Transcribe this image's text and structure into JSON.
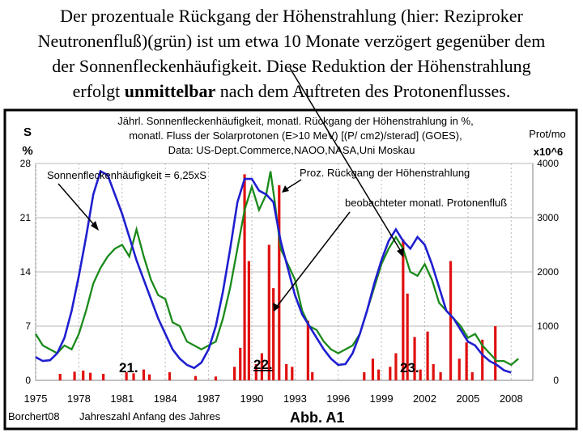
{
  "caption": {
    "line1": "Der prozentuale Rückgang der Höhenstrahlung (hier: Reziproker",
    "line2": "Neutronenfluß)(grün) ist um etwa 10 Monate verzögert gegenüber dem",
    "line3": "der Sonnenfleckenhäufigkeit. Diese Reduktion der Höhenstrahlung",
    "line4_pre": "erfolgt ",
    "line4_bold": "unmittelbar",
    "line4_post": " nach dem Auftreten des Protonenflusses."
  },
  "chart_data": {
    "type": "line",
    "title_lines": [
      "Jährl. Sonnenfleckenhäufigkeit, monatl. Rückgang der Höhenstrahlung in %,",
      "monatl. Fluss der Solarprotonen (E>10 MeV) [(P/ cm2)/sterad] (GOES),",
      "Data: US-Dept.Commerce,NAOO,NASA,Uni Moskau"
    ],
    "left_axis_label_1": "S",
    "left_axis_label_2": "%",
    "right_axis_label_1": "Prot/mo",
    "right_axis_label_2": "x10^6",
    "xlabel": "Jahreszahl Anfang des Jahres",
    "source_label": "Borchert08",
    "figure_label": "Abb. A1",
    "xlim": [
      1975,
      2009.5
    ],
    "ylim_left": [
      0,
      28
    ],
    "ylim_right": [
      0,
      4000
    ],
    "x_ticks": [
      1975,
      1978,
      1981,
      1984,
      1987,
      1990,
      1993,
      1996,
      1999,
      2002,
      2005,
      2008
    ],
    "y_ticks_left": [
      0,
      7,
      14,
      21,
      28
    ],
    "y_ticks_right": [
      0,
      1000,
      2000,
      3000,
      4000
    ],
    "annotations": {
      "sunspot": "Sonnenfleckenhäufigkeit = 6,25xS",
      "cosmic": "Proz. Rückgang der Höhenstrahlung",
      "protons": "beobachteter monatl. Protonenfluß",
      "cycle21": "21.",
      "cycle22": "22.",
      "cycle23": "23."
    },
    "grid": true,
    "colors": {
      "sunspot": "#1f1fd0",
      "cosmic": "#1a8a1a",
      "protons": "#e01010",
      "frame": "#000000",
      "grid": "#b8b8b8"
    },
    "series": [
      {
        "name": "Sonnenfleckenhäufigkeit = 6,25xS",
        "axis": "left",
        "x": [
          1975,
          1975.5,
          1976,
          1976.5,
          1977,
          1977.5,
          1978,
          1978.5,
          1979,
          1979.5,
          1980,
          1980.5,
          1981,
          1981.5,
          1982,
          1982.5,
          1983,
          1983.5,
          1984,
          1984.5,
          1985,
          1985.5,
          1986,
          1986.5,
          1987,
          1987.5,
          1988,
          1988.5,
          1989,
          1989.5,
          1990,
          1990.5,
          1991,
          1991.5,
          1992,
          1992.5,
          1993,
          1993.5,
          1994,
          1994.5,
          1995,
          1995.5,
          1996,
          1996.5,
          1997,
          1997.5,
          1998,
          1998.5,
          1999,
          1999.5,
          2000,
          2000.5,
          2001,
          2001.5,
          2002,
          2002.5,
          2003,
          2003.5,
          2004,
          2004.5,
          2005,
          2005.5,
          2006,
          2006.5,
          2007,
          2007.5,
          2008
        ],
        "values": [
          3,
          2.5,
          2.6,
          3.5,
          5.5,
          9,
          13.5,
          18.5,
          24,
          27,
          26.5,
          24,
          21.5,
          18.5,
          15.5,
          13,
          10.5,
          8,
          6,
          4,
          2.8,
          2,
          1.6,
          2.3,
          4,
          7,
          11.5,
          17,
          23,
          26,
          26,
          24.5,
          24,
          23,
          18,
          14.5,
          11,
          8.5,
          7,
          5.5,
          4,
          2.8,
          2,
          2.1,
          3.5,
          6,
          9,
          12.5,
          15.5,
          18,
          19.5,
          18,
          17,
          18.5,
          17.5,
          15,
          12,
          9,
          8,
          6.5,
          5,
          4.5,
          3.3,
          2.5,
          2,
          1.3,
          1
        ]
      },
      {
        "name": "Proz. Rückgang der Höhenstrahlung",
        "axis": "left",
        "x": [
          1975,
          1975.5,
          1976,
          1976.5,
          1977,
          1977.5,
          1978,
          1978.5,
          1979,
          1979.5,
          1980,
          1980.5,
          1981,
          1981.5,
          1982,
          1982.5,
          1983,
          1983.5,
          1984,
          1984.5,
          1985,
          1985.5,
          1986,
          1986.5,
          1987,
          1987.5,
          1988,
          1988.5,
          1989,
          1989.5,
          1990,
          1990.5,
          1991,
          1991.3,
          1991.6,
          1992,
          1992.5,
          1993,
          1993.5,
          1994,
          1994.5,
          1995,
          1995.5,
          1996,
          1996.5,
          1997,
          1997.5,
          1998,
          1998.5,
          1999,
          1999.5,
          2000,
          2000.5,
          2001,
          2001.5,
          2002,
          2002.5,
          2003,
          2003.5,
          2004,
          2004.5,
          2005,
          2005.5,
          2006,
          2006.5,
          2007,
          2007.5,
          2008,
          2008.5
        ],
        "values": [
          6,
          4.5,
          4,
          3.5,
          4.5,
          4,
          6,
          9,
          12.5,
          14.5,
          16,
          17,
          17.5,
          16,
          19.5,
          16,
          13,
          11,
          10.5,
          7.5,
          7,
          5,
          4.5,
          4,
          4.5,
          5,
          8,
          12,
          17,
          22,
          25,
          22,
          24,
          27,
          23,
          17,
          15,
          13,
          9,
          7,
          6.5,
          5,
          4,
          3.5,
          4,
          4.5,
          6,
          9,
          12,
          15,
          17,
          18.5,
          17,
          14,
          13.5,
          15,
          13,
          10,
          9,
          8,
          7,
          5.5,
          6,
          4.5,
          3.5,
          2.5,
          2.5,
          2,
          2.8
        ]
      },
      {
        "name": "beobachteter monatl. Protonenfluß",
        "axis": "right",
        "x": [
          1976.7,
          1977.7,
          1978.3,
          1978.8,
          1979.7,
          1981.3,
          1981.8,
          1982.5,
          1982.9,
          1984.3,
          1986.1,
          1987.5,
          1988.8,
          1989.2,
          1989.5,
          1989.8,
          1990.3,
          1990.7,
          1991.2,
          1991.5,
          1991.9,
          1992.4,
          1992.8,
          1993.9,
          1994.2,
          1997.8,
          1998.4,
          1998.8,
          1999.6,
          2000.0,
          2000.5,
          2000.8,
          2001.3,
          2001.7,
          2002.2,
          2002.6,
          2003.1,
          2003.8,
          2004.4,
          2004.9,
          2005.3,
          2006.0,
          2006.9
        ],
        "values": [
          120,
          160,
          180,
          140,
          120,
          150,
          130,
          200,
          110,
          150,
          80,
          70,
          250,
          600,
          3800,
          2200,
          300,
          500,
          2500,
          1700,
          3600,
          300,
          250,
          1100,
          150,
          150,
          400,
          200,
          250,
          500,
          2600,
          1600,
          800,
          200,
          900,
          300,
          150,
          2200,
          400,
          700,
          150,
          750,
          1000
        ]
      }
    ]
  }
}
